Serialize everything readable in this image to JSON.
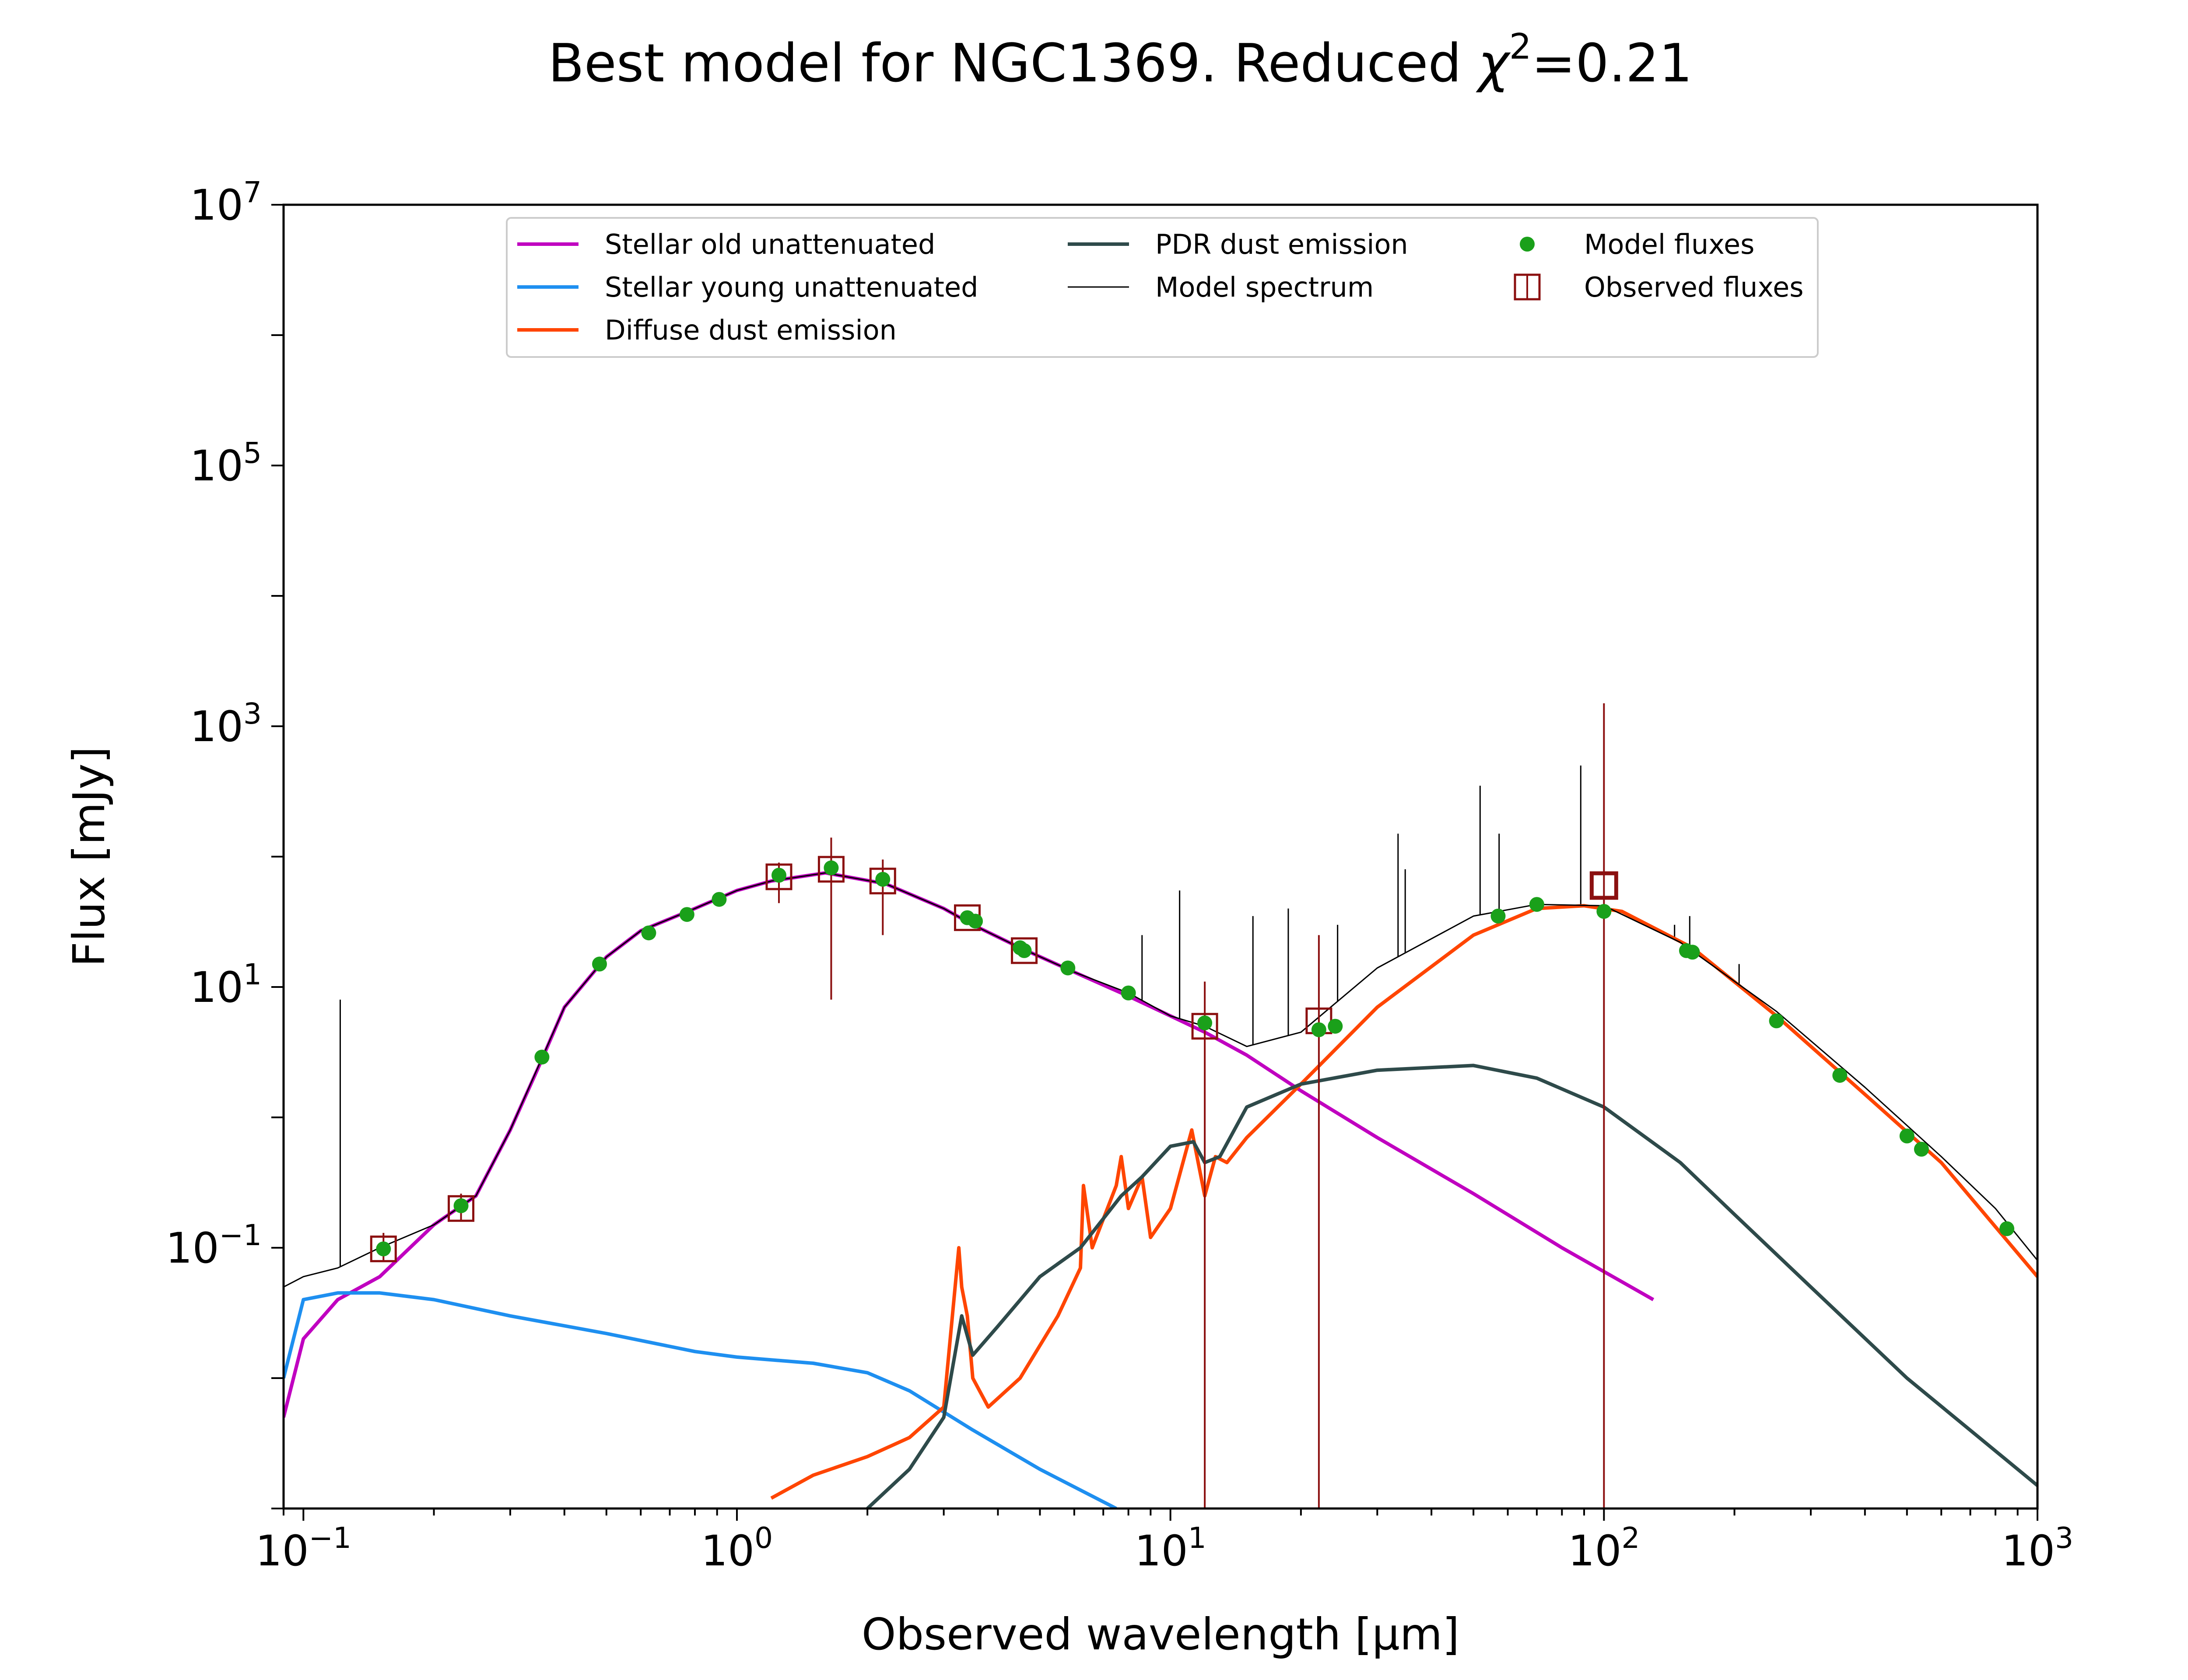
{
  "chart_data": {
    "type": "line",
    "title": "Best model for NGC1369. Reduced χ²=0.21",
    "title_parts": {
      "prefix": "Best model for NGC1369. Reduced ",
      "chi": "χ",
      "sup": "2",
      "suffix": "=0.21"
    },
    "xlabel": "Observed wavelength [μm]",
    "ylabel": "Flux [mJy]",
    "x_scale": "log",
    "y_scale": "log",
    "xlim": [
      0.09,
      1000
    ],
    "ylim": [
      0.001,
      10000000
    ],
    "grid": false,
    "legend_position": "top-center",
    "x_ticks": [
      {
        "value": 0.1,
        "base": "10",
        "exp": "−1"
      },
      {
        "value": 1,
        "base": "10",
        "exp": "0"
      },
      {
        "value": 10,
        "base": "10",
        "exp": "1"
      },
      {
        "value": 100,
        "base": "10",
        "exp": "2"
      },
      {
        "value": 1000,
        "base": "10",
        "exp": "3"
      }
    ],
    "y_ticks": [
      {
        "value": 0.1,
        "base": "10",
        "exp": "−1"
      },
      {
        "value": 10,
        "base": "10",
        "exp": "1"
      },
      {
        "value": 1000,
        "base": "10",
        "exp": "3"
      },
      {
        "value": 100000,
        "base": "10",
        "exp": "5"
      },
      {
        "value": 10000000,
        "base": "10",
        "exp": "7"
      }
    ],
    "series": [
      {
        "name": "Stellar old unattenuated",
        "color": "#c000c0",
        "kind": "line",
        "x": [
          0.09,
          0.1,
          0.12,
          0.15,
          0.2,
          0.25,
          0.3,
          0.35,
          0.4,
          0.5,
          0.6,
          0.8,
          1.0,
          1.2,
          1.6,
          2.2,
          3.0,
          3.5,
          4.5,
          6.0,
          8.0,
          10,
          12,
          15,
          20,
          30,
          50,
          80,
          130
        ],
        "y": [
          0.005,
          0.02,
          0.04,
          0.06,
          0.15,
          0.25,
          0.8,
          2.5,
          7,
          17,
          27,
          40,
          55,
          65,
          75,
          62,
          40,
          30,
          20,
          13,
          8.5,
          6,
          4.5,
          3.0,
          1.6,
          0.7,
          0.26,
          0.1,
          0.04
        ]
      },
      {
        "name": "Stellar young unattenuated",
        "color": "#1e8ff0",
        "kind": "line",
        "x": [
          0.09,
          0.1,
          0.12,
          0.15,
          0.2,
          0.3,
          0.5,
          0.8,
          1.0,
          1.5,
          2.0,
          2.5,
          3.5,
          5.0,
          7.5
        ],
        "y": [
          0.01,
          0.04,
          0.045,
          0.045,
          0.04,
          0.03,
          0.022,
          0.016,
          0.0145,
          0.013,
          0.011,
          0.008,
          0.004,
          0.002,
          0.001
        ]
      },
      {
        "name": "Diffuse dust emission",
        "color": "#ff4500",
        "kind": "line",
        "x": [
          1.2,
          1.5,
          2.0,
          2.5,
          3.0,
          3.25,
          3.3,
          3.4,
          3.5,
          3.8,
          4.5,
          5.5,
          6.2,
          6.3,
          6.6,
          7.5,
          7.7,
          8.0,
          8.6,
          9.0,
          10.0,
          11.2,
          12.0,
          12.7,
          13.5,
          15,
          20,
          30,
          50,
          70,
          90,
          110,
          160,
          250,
          400,
          600,
          1000
        ],
        "y": [
          0.0012,
          0.0018,
          0.0025,
          0.0035,
          0.006,
          0.1,
          0.05,
          0.03,
          0.01,
          0.006,
          0.01,
          0.03,
          0.07,
          0.3,
          0.1,
          0.3,
          0.5,
          0.2,
          0.35,
          0.12,
          0.2,
          0.8,
          0.25,
          0.5,
          0.45,
          0.7,
          1.8,
          7,
          25,
          40,
          42,
          38,
          20,
          6,
          1.5,
          0.45,
          0.06
        ]
      },
      {
        "name": "PDR dust emission",
        "color": "#2e4a4a",
        "kind": "line",
        "x": [
          2.0,
          2.5,
          3.0,
          3.3,
          3.5,
          4.0,
          5.0,
          6.2,
          7.7,
          8.6,
          10,
          11.3,
          12,
          13,
          15,
          20,
          30,
          50,
          70,
          100,
          150,
          200,
          300,
          500,
          1000
        ],
        "y": [
          0.001,
          0.002,
          0.005,
          0.03,
          0.015,
          0.025,
          0.06,
          0.1,
          0.25,
          0.35,
          0.6,
          0.65,
          0.45,
          0.5,
          1.2,
          1.8,
          2.3,
          2.5,
          2.0,
          1.2,
          0.45,
          0.18,
          0.05,
          0.01,
          0.0015
        ]
      },
      {
        "name": "Model spectrum",
        "color": "#000000",
        "kind": "thin-line",
        "x": [
          0.09,
          0.1,
          0.12,
          0.15,
          0.2,
          0.25,
          0.3,
          0.4,
          0.5,
          0.6,
          0.8,
          1.0,
          1.2,
          1.6,
          2.2,
          3.0,
          3.5,
          4.5,
          6.0,
          8.0,
          10,
          12,
          15,
          20,
          30,
          50,
          70,
          100,
          150,
          250,
          400,
          600,
          800,
          1000
        ],
        "y": [
          0.05,
          0.06,
          0.07,
          0.1,
          0.15,
          0.25,
          0.8,
          7,
          17,
          27,
          40,
          55,
          65,
          75,
          62,
          40,
          30,
          20,
          13,
          9,
          6,
          5,
          3.5,
          4.5,
          14,
          35,
          43,
          42,
          22,
          6.5,
          1.7,
          0.5,
          0.2,
          0.08
        ]
      },
      {
        "name": "Model fluxes",
        "color": "#1aa01a",
        "kind": "points",
        "x": [
          0.153,
          0.231,
          0.355,
          0.482,
          0.626,
          0.767,
          0.91,
          1.25,
          1.65,
          2.17,
          3.4,
          3.55,
          4.5,
          4.6,
          5.8,
          8.0,
          12,
          22,
          24,
          57,
          70,
          100,
          155,
          160,
          250,
          350,
          500,
          540,
          850
        ],
        "y": [
          0.098,
          0.21,
          2.9,
          15,
          26,
          36,
          47,
          72,
          82,
          67,
          34,
          32,
          20,
          19,
          14,
          9,
          5.3,
          4.7,
          5.0,
          35,
          43,
          38,
          19,
          18.5,
          5.5,
          2.1,
          0.72,
          0.57,
          0.14
        ]
      },
      {
        "name": "Observed fluxes",
        "color": "#8b1010",
        "kind": "squares",
        "x": [
          0.153,
          0.231,
          1.25,
          1.65,
          2.17,
          3.4,
          4.6,
          12,
          22,
          100
        ],
        "y": [
          0.098,
          0.2,
          70,
          80,
          65,
          34,
          19,
          5.0,
          5.5,
          60
        ],
        "yerr_low": [
          0.078,
          0.16,
          44,
          8,
          25,
          34,
          19,
          0.001,
          0.001,
          0.001
        ],
        "yerr_high": [
          0.13,
          0.26,
          90,
          140,
          95,
          34,
          19,
          11,
          25,
          1500
        ]
      }
    ],
    "emission_lines": {
      "x": [
        0.1216,
        8.6,
        10.5,
        15.5,
        18.7,
        24.3,
        33.5,
        34.8,
        51.8,
        57.3,
        88.4,
        100,
        145.5,
        157.7,
        205
      ],
      "y_top": [
        8,
        25,
        55,
        35,
        40,
        30,
        150,
        80,
        350,
        150,
        500,
        400,
        30,
        35,
        15
      ]
    },
    "legend_entries": [
      {
        "label": "Stellar old unattenuated",
        "color": "#c000c0",
        "kind": "line"
      },
      {
        "label": "Stellar young unattenuated",
        "color": "#1e8ff0",
        "kind": "line"
      },
      {
        "label": "Diffuse dust emission",
        "color": "#ff4500",
        "kind": "line"
      },
      {
        "label": "PDR dust emission",
        "color": "#2e4a4a",
        "kind": "line"
      },
      {
        "label": "Model spectrum",
        "color": "#000000",
        "kind": "thin-line"
      },
      {
        "label": "Model fluxes",
        "color": "#1aa01a",
        "kind": "point"
      },
      {
        "label": "Observed fluxes",
        "color": "#8b1010",
        "kind": "square"
      }
    ]
  }
}
